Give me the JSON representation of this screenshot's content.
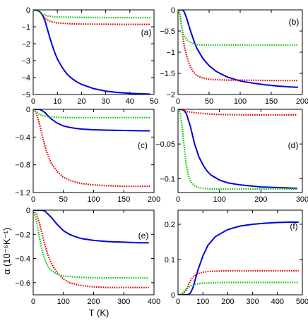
{
  "figure": {
    "ylabel": "α  (10⁻⁶K⁻¹)",
    "xlabel": "T (K)"
  },
  "chart_data": [
    {
      "id": "a",
      "type": "line",
      "label": "(a)",
      "xlim": [
        0,
        50
      ],
      "ylim": [
        -5,
        0
      ],
      "xticks": [
        0,
        10,
        20,
        30,
        40,
        50
      ],
      "yticks": [
        0,
        -1,
        -2,
        -3,
        -4,
        -5
      ],
      "xtick_labels": [
        "0",
        "10",
        "20",
        "30",
        "40",
        "50"
      ],
      "ytick_labels": [
        "0",
        "−1",
        "−2",
        "−3",
        "−4",
        "−5"
      ],
      "series": [
        {
          "color": "#0000dd",
          "style": "solid",
          "x": [
            0,
            2,
            3,
            4,
            5,
            6,
            7,
            8,
            9,
            10,
            12,
            14,
            16,
            18,
            20,
            25,
            30,
            35,
            40,
            45,
            48.5
          ],
          "y": [
            0,
            -0.05,
            -0.15,
            -0.35,
            -0.7,
            -1.2,
            -1.7,
            -2.15,
            -2.55,
            -2.9,
            -3.4,
            -3.8,
            -4.05,
            -4.25,
            -4.4,
            -4.65,
            -4.8,
            -4.88,
            -4.93,
            -4.96,
            -4.98
          ]
        },
        {
          "color": "#dd0000",
          "style": "dotted",
          "x": [
            0,
            2,
            3,
            4,
            5,
            6,
            8,
            10,
            15,
            20,
            30,
            40,
            48.5
          ],
          "y": [
            0,
            -0.05,
            -0.15,
            -0.35,
            -0.5,
            -0.6,
            -0.72,
            -0.77,
            -0.82,
            -0.84,
            -0.85,
            -0.86,
            -0.86
          ]
        },
        {
          "color": "#00cc00",
          "style": "dotted",
          "x": [
            0,
            2,
            3,
            4,
            5,
            6,
            8,
            10,
            20,
            30,
            40,
            48.5
          ],
          "y": [
            0,
            -0.05,
            -0.15,
            -0.25,
            -0.32,
            -0.36,
            -0.4,
            -0.42,
            -0.45,
            -0.46,
            -0.46,
            -0.46
          ]
        }
      ]
    },
    {
      "id": "b",
      "type": "line",
      "label": "(b)",
      "xlim": [
        0,
        200
      ],
      "ylim": [
        -2,
        0
      ],
      "xticks": [
        0,
        50,
        100,
        150,
        200
      ],
      "yticks": [
        0,
        -0.5,
        -1,
        -1.5,
        -2
      ],
      "xtick_labels": [
        "0",
        "50",
        "100",
        "150",
        "200"
      ],
      "ytick_labels": [
        "0",
        "−0.5",
        "−1",
        "−1.5",
        "−2"
      ],
      "series": [
        {
          "color": "#0000dd",
          "style": "solid",
          "x": [
            0,
            8,
            10,
            14,
            18,
            22,
            26,
            30,
            40,
            50,
            60,
            70,
            80,
            100,
            120,
            140,
            160,
            180,
            193
          ],
          "y": [
            0,
            0,
            -0.05,
            -0.2,
            -0.4,
            -0.58,
            -0.75,
            -0.9,
            -1.15,
            -1.32,
            -1.44,
            -1.52,
            -1.59,
            -1.68,
            -1.73,
            -1.77,
            -1.8,
            -1.82,
            -1.83
          ]
        },
        {
          "color": "#dd0000",
          "style": "dotted",
          "x": [
            0,
            3,
            5,
            7,
            10,
            15,
            20,
            25,
            30,
            40,
            50,
            60,
            80,
            100,
            150,
            193
          ],
          "y": [
            0,
            -0.1,
            -0.3,
            -0.55,
            -0.85,
            -1.15,
            -1.35,
            -1.47,
            -1.55,
            -1.61,
            -1.64,
            -1.65,
            -1.66,
            -1.66,
            -1.67,
            -1.67
          ]
        },
        {
          "color": "#00cc00",
          "style": "dotted",
          "x": [
            0,
            3,
            5,
            7,
            10,
            15,
            20,
            25,
            30,
            40,
            60,
            100,
            150,
            193
          ],
          "y": [
            0,
            -0.1,
            -0.3,
            -0.5,
            -0.62,
            -0.72,
            -0.77,
            -0.8,
            -0.82,
            -0.83,
            -0.83,
            -0.83,
            -0.83,
            -0.83
          ]
        }
      ]
    },
    {
      "id": "c",
      "type": "line",
      "label": "(c)",
      "xlim": [
        0,
        200
      ],
      "ylim": [
        -1.2,
        0
      ],
      "xticks": [
        0,
        50,
        100,
        150,
        200
      ],
      "yticks": [
        0,
        -0.4,
        -0.8,
        -1.2
      ],
      "xtick_labels": [
        "0",
        "50",
        "100",
        "150",
        "200"
      ],
      "ytick_labels": [
        "0",
        "−0.4",
        "−0.8",
        "−1.2"
      ],
      "series": [
        {
          "color": "#0000dd",
          "style": "solid",
          "x": [
            0,
            10,
            15,
            20,
            25,
            30,
            40,
            50,
            60,
            70,
            80,
            100,
            120,
            150,
            180,
            193
          ],
          "y": [
            0,
            0,
            -0.02,
            -0.05,
            -0.1,
            -0.14,
            -0.2,
            -0.24,
            -0.26,
            -0.275,
            -0.285,
            -0.295,
            -0.3,
            -0.305,
            -0.31,
            -0.31
          ]
        },
        {
          "color": "#dd0000",
          "style": "dotted",
          "x": [
            0,
            5,
            10,
            15,
            20,
            25,
            30,
            40,
            50,
            60,
            70,
            80,
            100,
            120,
            150,
            193
          ],
          "y": [
            0,
            -0.05,
            -0.2,
            -0.38,
            -0.55,
            -0.68,
            -0.78,
            -0.9,
            -0.98,
            -1.02,
            -1.05,
            -1.07,
            -1.09,
            -1.1,
            -1.11,
            -1.11
          ]
        },
        {
          "color": "#00cc00",
          "style": "dotted",
          "x": [
            0,
            5,
            10,
            15,
            20,
            30,
            40,
            60,
            100,
            150,
            193
          ],
          "y": [
            0,
            -0.03,
            -0.07,
            -0.09,
            -0.1,
            -0.11,
            -0.115,
            -0.12,
            -0.12,
            -0.12,
            -0.12
          ]
        }
      ]
    },
    {
      "id": "d",
      "type": "line",
      "label": "(d)",
      "xlim": [
        0,
        300
      ],
      "ylim": [
        -0.12,
        0
      ],
      "xticks": [
        0,
        100,
        200,
        300
      ],
      "yticks": [
        0,
        -0.05,
        -0.1
      ],
      "xtick_labels": [
        "0",
        "100",
        "200",
        "300"
      ],
      "ytick_labels": [
        "0",
        "−0.05",
        "−0.1"
      ],
      "series": [
        {
          "color": "#0000dd",
          "style": "solid",
          "x": [
            0,
            10,
            15,
            20,
            30,
            40,
            50,
            60,
            70,
            80,
            100,
            120,
            150,
            200,
            250,
            288
          ],
          "y": [
            0,
            0,
            -0.002,
            -0.006,
            -0.025,
            -0.05,
            -0.068,
            -0.08,
            -0.089,
            -0.095,
            -0.102,
            -0.106,
            -0.109,
            -0.112,
            -0.113,
            -0.114
          ]
        },
        {
          "color": "#dd0000",
          "style": "dotted",
          "x": [
            0,
            10,
            20,
            30,
            40,
            60,
            80,
            100,
            150,
            200,
            250,
            288
          ],
          "y": [
            0,
            -0.001,
            -0.003,
            -0.004,
            -0.005,
            -0.006,
            -0.007,
            -0.0075,
            -0.008,
            -0.008,
            -0.008,
            -0.008
          ]
        },
        {
          "color": "#00cc00",
          "style": "dotted",
          "x": [
            0,
            5,
            10,
            15,
            20,
            25,
            30,
            40,
            50,
            60,
            80,
            100,
            150,
            200,
            288
          ],
          "y": [
            0,
            -0.005,
            -0.025,
            -0.055,
            -0.08,
            -0.095,
            -0.104,
            -0.11,
            -0.113,
            -0.114,
            -0.115,
            -0.115,
            -0.115,
            -0.115,
            -0.115
          ]
        }
      ]
    },
    {
      "id": "e",
      "type": "line",
      "label": "(e)",
      "xlim": [
        0,
        400
      ],
      "ylim": [
        -0.7,
        0
      ],
      "xticks": [
        0,
        100,
        200,
        300,
        400
      ],
      "yticks": [
        0,
        -0.2,
        -0.4,
        -0.6
      ],
      "xtick_labels": [
        "0",
        "100",
        "200",
        "300",
        "400"
      ],
      "ytick_labels": [
        "0",
        "−0.2",
        "−0.4",
        "−0.6"
      ],
      "series": [
        {
          "color": "#0000dd",
          "style": "solid",
          "x": [
            0,
            30,
            40,
            60,
            80,
            100,
            120,
            140,
            160,
            200,
            250,
            300,
            350,
            383
          ],
          "y": [
            0,
            0,
            -0.01,
            -0.06,
            -0.12,
            -0.17,
            -0.2,
            -0.22,
            -0.235,
            -0.25,
            -0.26,
            -0.265,
            -0.27,
            -0.27
          ]
        },
        {
          "color": "#dd0000",
          "style": "dotted",
          "x": [
            0,
            10,
            20,
            30,
            40,
            50,
            60,
            80,
            100,
            120,
            150,
            200,
            250,
            300,
            383
          ],
          "y": [
            0,
            -0.03,
            -0.1,
            -0.2,
            -0.3,
            -0.38,
            -0.44,
            -0.52,
            -0.57,
            -0.6,
            -0.62,
            -0.635,
            -0.64,
            -0.64,
            -0.64
          ]
        },
        {
          "color": "#00cc00",
          "style": "dotted",
          "x": [
            0,
            10,
            20,
            30,
            40,
            50,
            60,
            80,
            100,
            150,
            200,
            300,
            383
          ],
          "y": [
            0,
            -0.08,
            -0.22,
            -0.34,
            -0.42,
            -0.47,
            -0.5,
            -0.53,
            -0.545,
            -0.555,
            -0.56,
            -0.56,
            -0.56
          ]
        }
      ]
    },
    {
      "id": "f",
      "type": "line",
      "label": "(f)",
      "xlim": [
        0,
        500
      ],
      "ylim": [
        0,
        0.24
      ],
      "xticks": [
        0,
        100,
        200,
        300,
        400,
        500
      ],
      "yticks": [
        0,
        0.1,
        0.2
      ],
      "xtick_labels": [
        "0",
        "100",
        "200",
        "300",
        "400",
        "500"
      ],
      "ytick_labels": [
        "0",
        "0.1",
        "0.2"
      ],
      "series": [
        {
          "color": "#0000dd",
          "style": "solid",
          "x": [
            0,
            40,
            50,
            60,
            70,
            80,
            100,
            120,
            150,
            200,
            250,
            300,
            350,
            400,
            450,
            485
          ],
          "y": [
            0,
            0,
            0.005,
            0.02,
            0.045,
            0.07,
            0.11,
            0.14,
            0.165,
            0.185,
            0.195,
            0.2,
            0.203,
            0.205,
            0.206,
            0.206
          ]
        },
        {
          "color": "#dd0000",
          "style": "dotted",
          "x": [
            0,
            20,
            30,
            40,
            50,
            60,
            70,
            80,
            100,
            120,
            150,
            200,
            300,
            400,
            485
          ],
          "y": [
            0,
            0.002,
            0.01,
            0.025,
            0.04,
            0.05,
            0.056,
            0.06,
            0.064,
            0.066,
            0.067,
            0.068,
            0.068,
            0.068,
            0.068
          ]
        },
        {
          "color": "#00cc00",
          "style": "dotted",
          "x": [
            0,
            10,
            20,
            30,
            40,
            50,
            60,
            80,
            100,
            150,
            200,
            300,
            400,
            485
          ],
          "y": [
            0,
            0.001,
            0.006,
            0.014,
            0.02,
            0.025,
            0.028,
            0.031,
            0.033,
            0.034,
            0.035,
            0.035,
            0.035,
            0.035
          ]
        }
      ]
    }
  ]
}
